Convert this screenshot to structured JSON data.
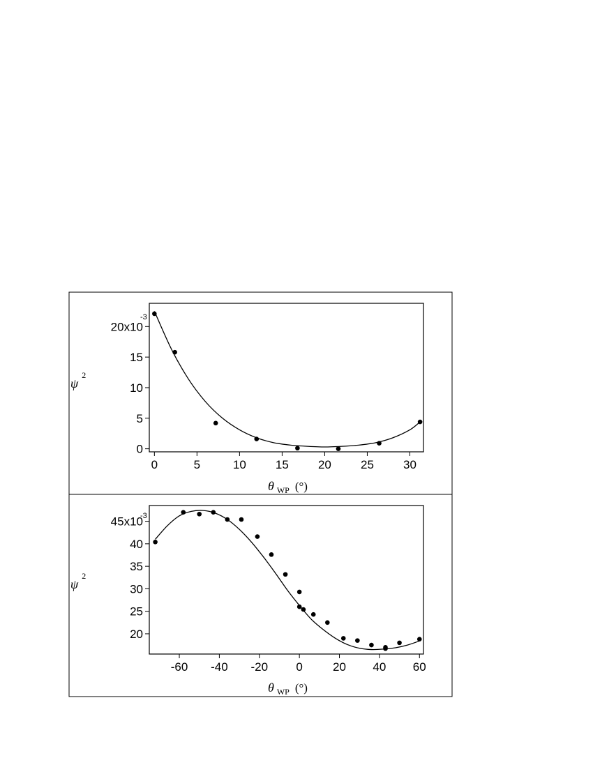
{
  "chart_data": [
    {
      "type": "scatter",
      "title": "",
      "xlabel": {
        "symbol": "θ",
        "subscript": "WP",
        "unit": "(°)"
      },
      "ylabel": {
        "symbol": "ψ",
        "superscript": "2"
      },
      "xlim": [
        -0.6,
        31.6
      ],
      "ylim": [
        -0.0005,
        0.0238
      ],
      "xticks": [
        0,
        5,
        10,
        15,
        20,
        25,
        30
      ],
      "xtick_labels": [
        "0",
        "5",
        "10",
        "15",
        "20",
        "25",
        "30"
      ],
      "yticks": [
        0,
        0.005,
        0.01,
        0.015,
        0.02
      ],
      "ytick_labels": [
        "0",
        "5",
        "10",
        "15",
        "20x10"
      ],
      "y_exponent": "-3",
      "grid": false,
      "series": [
        {
          "kind": "points",
          "x": [
            0.0,
            2.4,
            7.2,
            12.0,
            16.8,
            21.6,
            26.4,
            31.2
          ],
          "y": [
            0.0221,
            0.0158,
            0.0042,
            0.0016,
            0.0001,
            0.0,
            0.0009,
            0.0044
          ]
        },
        {
          "kind": "fit-curve",
          "x": [
            0,
            2,
            4,
            6,
            8,
            10,
            12,
            14,
            16,
            18,
            20,
            22,
            24,
            26,
            28,
            30,
            31.2
          ],
          "y": [
            0.0225,
            0.0163,
            0.0114,
            0.0077,
            0.005,
            0.0031,
            0.0018,
            0.001,
            0.0006,
            0.0004,
            0.0003,
            0.0004,
            0.0006,
            0.001,
            0.0018,
            0.0031,
            0.0044
          ]
        }
      ]
    },
    {
      "type": "scatter",
      "title": "",
      "xlabel": {
        "symbol": "θ",
        "subscript": "WP",
        "unit": "(°)"
      },
      "ylabel": {
        "symbol": "ψ",
        "superscript": "2"
      },
      "xlim": [
        -75,
        62
      ],
      "ylim": [
        0.0155,
        0.0485
      ],
      "xticks": [
        -60,
        -40,
        -20,
        0,
        20,
        40,
        60
      ],
      "xtick_labels": [
        "-60",
        "-40",
        "-20",
        "0",
        "20",
        "40",
        "60"
      ],
      "yticks": [
        0.02,
        0.025,
        0.03,
        0.035,
        0.04,
        0.045
      ],
      "ytick_labels": [
        "20",
        "25",
        "30",
        "35",
        "40",
        "45x10"
      ],
      "y_exponent": "-3",
      "grid": false,
      "series": [
        {
          "kind": "points",
          "x": [
            -72,
            -58,
            -50,
            -43,
            -36,
            -29,
            -21,
            -14,
            -7,
            0,
            0,
            2,
            7,
            14,
            22,
            29,
            36,
            43,
            43,
            50,
            60
          ],
          "y": [
            0.0404,
            0.047,
            0.0466,
            0.047,
            0.0454,
            0.0454,
            0.0416,
            0.0376,
            0.0332,
            0.0293,
            0.026,
            0.0254,
            0.0243,
            0.0225,
            0.019,
            0.0185,
            0.0175,
            0.017,
            0.0167,
            0.018,
            0.0188
          ]
        },
        {
          "kind": "fit-curve",
          "x": [
            -72,
            -66,
            -60,
            -54,
            -48,
            -42,
            -36,
            -30,
            -24,
            -18,
            -12,
            -6,
            0,
            6,
            12,
            18,
            24,
            30,
            36,
            42,
            48,
            54,
            60
          ],
          "y": [
            0.041,
            0.044,
            0.0462,
            0.0472,
            0.0474,
            0.0468,
            0.0454,
            0.0432,
            0.0404,
            0.0371,
            0.0335,
            0.0297,
            0.0263,
            0.0232,
            0.0209,
            0.019,
            0.0176,
            0.0168,
            0.0165,
            0.0166,
            0.0169,
            0.0175,
            0.0184
          ]
        }
      ]
    }
  ]
}
